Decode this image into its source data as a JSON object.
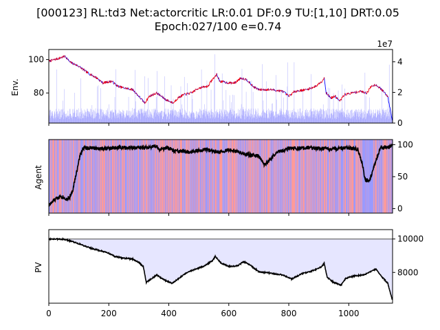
{
  "title_line1": "[000123] RL:td3 Net:actorcritic LR:0.01 DF:0.9 TU:[1,10] DRT:0.05",
  "title_line2": "Epoch:027/100 e=0.74",
  "colors": {
    "price_up": "#ff0000",
    "price_down": "#0000ff",
    "volume": "#9999ff",
    "agent_line": "#000000",
    "action_buy": "#ff8888",
    "action_sell": "#8888ff",
    "pv_line": "#000000",
    "pv_fill": "#e6e6ff",
    "pv_ref_line": "#808080"
  },
  "chart_data": [
    {
      "type": "line",
      "name": "env",
      "ylabel": "Env.",
      "x_range": [
        0,
        1146
      ],
      "y_left": {
        "range": [
          62,
          106
        ],
        "ticks": [
          80,
          100
        ]
      },
      "y_right": {
        "range": [
          0,
          48000000
        ],
        "ticks": [
          0,
          20000000,
          40000000
        ],
        "tick_labels": [
          "0",
          "2",
          "4"
        ],
        "offset_label": "1e7"
      },
      "price_anchors": [
        [
          0,
          99
        ],
        [
          30,
          100.5
        ],
        [
          55,
          102
        ],
        [
          70,
          98.5
        ],
        [
          100,
          96
        ],
        [
          130,
          92
        ],
        [
          160,
          89
        ],
        [
          180,
          86
        ],
        [
          210,
          87
        ],
        [
          230,
          84
        ],
        [
          250,
          83
        ],
        [
          280,
          82
        ],
        [
          300,
          78
        ],
        [
          320,
          74
        ],
        [
          335,
          78
        ],
        [
          360,
          80
        ],
        [
          390,
          76
        ],
        [
          415,
          74
        ],
        [
          430,
          77
        ],
        [
          450,
          79
        ],
        [
          475,
          80
        ],
        [
          500,
          83
        ],
        [
          530,
          84
        ],
        [
          545,
          88
        ],
        [
          560,
          91
        ],
        [
          570,
          87
        ],
        [
          600,
          86
        ],
        [
          620,
          86
        ],
        [
          640,
          89
        ],
        [
          660,
          88
        ],
        [
          680,
          84
        ],
        [
          700,
          82
        ],
        [
          740,
          82
        ],
        [
          780,
          81
        ],
        [
          800,
          78
        ],
        [
          820,
          81
        ],
        [
          860,
          82
        ],
        [
          890,
          84
        ],
        [
          910,
          87
        ],
        [
          918,
          89
        ],
        [
          925,
          80
        ],
        [
          940,
          77
        ],
        [
          955,
          78
        ],
        [
          970,
          75
        ],
        [
          985,
          79
        ],
        [
          1010,
          80
        ],
        [
          1040,
          81
        ],
        [
          1060,
          80
        ],
        [
          1075,
          84
        ],
        [
          1090,
          85
        ],
        [
          1110,
          82
        ],
        [
          1130,
          78
        ],
        [
          1146,
          63
        ]
      ],
      "volume_level": 6000000
    },
    {
      "type": "line",
      "name": "agent",
      "ylabel": "Agent",
      "x_range": [
        0,
        1146
      ],
      "y_right": {
        "range": [
          -7,
          108
        ],
        "ticks": [
          0,
          50,
          100
        ]
      },
      "agent_anchors": [
        [
          0,
          5
        ],
        [
          20,
          14
        ],
        [
          40,
          20
        ],
        [
          60,
          15
        ],
        [
          70,
          18
        ],
        [
          80,
          30
        ],
        [
          95,
          62
        ],
        [
          105,
          85
        ],
        [
          115,
          95
        ],
        [
          200,
          94
        ],
        [
          250,
          96
        ],
        [
          330,
          95
        ],
        [
          355,
          98
        ],
        [
          370,
          92
        ],
        [
          395,
          95
        ],
        [
          420,
          90
        ],
        [
          470,
          88
        ],
        [
          520,
          93
        ],
        [
          560,
          88
        ],
        [
          600,
          92
        ],
        [
          650,
          86
        ],
        [
          700,
          82
        ],
        [
          720,
          68
        ],
        [
          760,
          88
        ],
        [
          800,
          94
        ],
        [
          880,
          95
        ],
        [
          950,
          93
        ],
        [
          1000,
          95
        ],
        [
          1030,
          93
        ],
        [
          1045,
          70
        ],
        [
          1055,
          45
        ],
        [
          1070,
          45
        ],
        [
          1090,
          75
        ],
        [
          1105,
          95
        ],
        [
          1146,
          98
        ]
      ]
    },
    {
      "type": "area",
      "name": "pv",
      "ylabel": "PV",
      "x_range": [
        0,
        1146
      ],
      "x_ticks": [
        0,
        200,
        400,
        600,
        800,
        1000
      ],
      "y_right": {
        "range": [
          6160,
          10560
        ],
        "ticks": [
          8000,
          10000
        ]
      },
      "reference": 10000,
      "pv_anchors": [
        [
          0,
          10000
        ],
        [
          45,
          9990
        ],
        [
          80,
          9850
        ],
        [
          110,
          9650
        ],
        [
          140,
          9450
        ],
        [
          170,
          9300
        ],
        [
          200,
          9150
        ],
        [
          220,
          8950
        ],
        [
          250,
          8850
        ],
        [
          280,
          8800
        ],
        [
          300,
          8600
        ],
        [
          315,
          8350
        ],
        [
          325,
          7400
        ],
        [
          340,
          7600
        ],
        [
          360,
          7850
        ],
        [
          385,
          7550
        ],
        [
          410,
          7350
        ],
        [
          430,
          7600
        ],
        [
          460,
          8000
        ],
        [
          490,
          8200
        ],
        [
          520,
          8400
        ],
        [
          545,
          8700
        ],
        [
          555,
          8950
        ],
        [
          575,
          8550
        ],
        [
          600,
          8350
        ],
        [
          630,
          8400
        ],
        [
          650,
          8650
        ],
        [
          670,
          8450
        ],
        [
          700,
          8050
        ],
        [
          740,
          7950
        ],
        [
          780,
          7850
        ],
        [
          810,
          7600
        ],
        [
          840,
          7900
        ],
        [
          880,
          8100
        ],
        [
          910,
          8350
        ],
        [
          918,
          8550
        ],
        [
          928,
          7700
        ],
        [
          950,
          7400
        ],
        [
          975,
          7250
        ],
        [
          990,
          7650
        ],
        [
          1020,
          7800
        ],
        [
          1050,
          7850
        ],
        [
          1075,
          8050
        ],
        [
          1090,
          8200
        ],
        [
          1110,
          7750
        ],
        [
          1130,
          7350
        ],
        [
          1146,
          6300
        ]
      ]
    }
  ]
}
